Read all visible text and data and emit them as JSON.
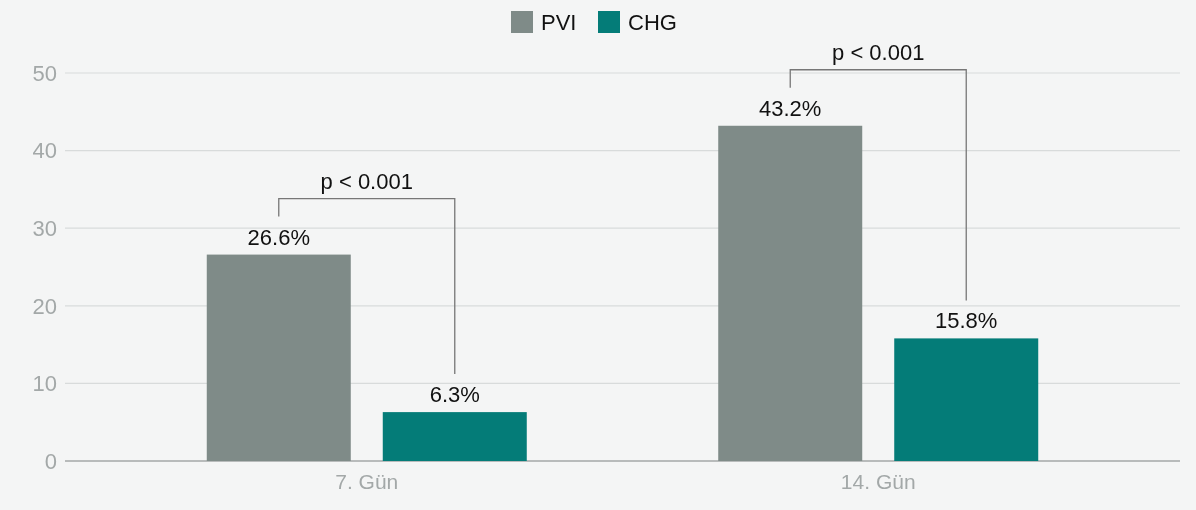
{
  "chart_data": {
    "type": "bar",
    "categories": [
      "7. Gün",
      "14. Gün"
    ],
    "series": [
      {
        "name": "PVI",
        "color": "#7f8b88",
        "values": [
          26.6,
          43.2
        ],
        "value_labels": [
          "26.6%",
          "43.2%"
        ]
      },
      {
        "name": "CHG",
        "color": "#047c78",
        "values": [
          6.3,
          15.8
        ],
        "value_labels": [
          "6.3%",
          "15.8%"
        ]
      }
    ],
    "ylim": [
      0,
      50
    ],
    "yticks": [
      0,
      10,
      20,
      30,
      40,
      50
    ],
    "grid": "y",
    "legend": "top",
    "annotations": [
      "p < 0.001",
      "p < 0.001"
    ]
  }
}
